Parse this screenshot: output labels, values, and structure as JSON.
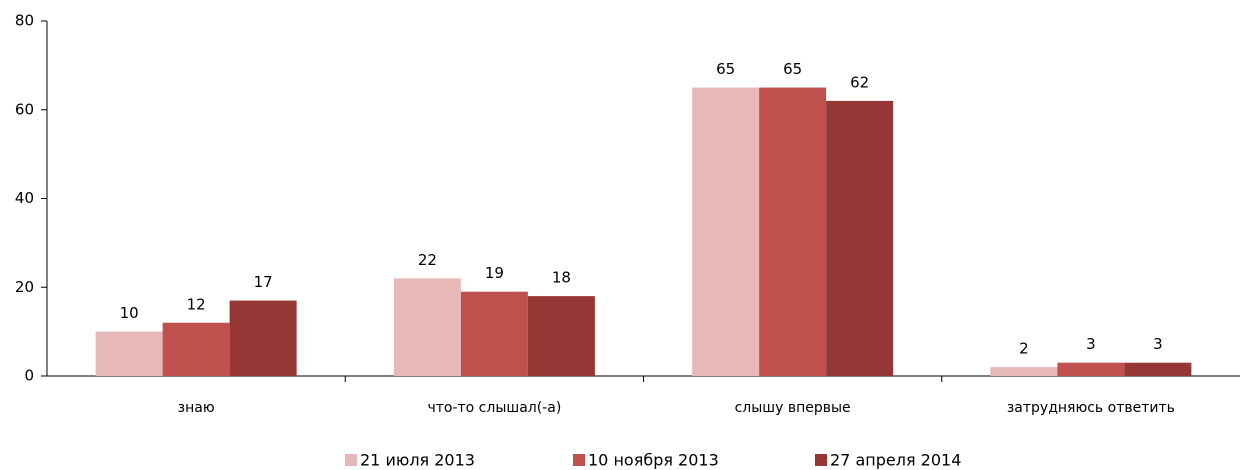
{
  "chart_data": {
    "type": "bar",
    "categories": [
      "знаю",
      "что-то слышал(-а)",
      "слышу впервые",
      "затрудняюсь ответить"
    ],
    "series": [
      {
        "name": "21 июля 2013",
        "color": "#e6b9b8",
        "values": [
          10,
          22,
          65,
          2
        ]
      },
      {
        "name": "10 ноября 2013",
        "color": "#c0504d",
        "values": [
          12,
          19,
          65,
          3
        ]
      },
      {
        "name": "27 апреля 2014",
        "color": "#953735",
        "values": [
          17,
          18,
          62,
          3
        ]
      }
    ],
    "ylim": [
      0,
      80
    ],
    "yticks": [
      0,
      20,
      40,
      60,
      80
    ],
    "grid": false,
    "legend": "bottom"
  }
}
